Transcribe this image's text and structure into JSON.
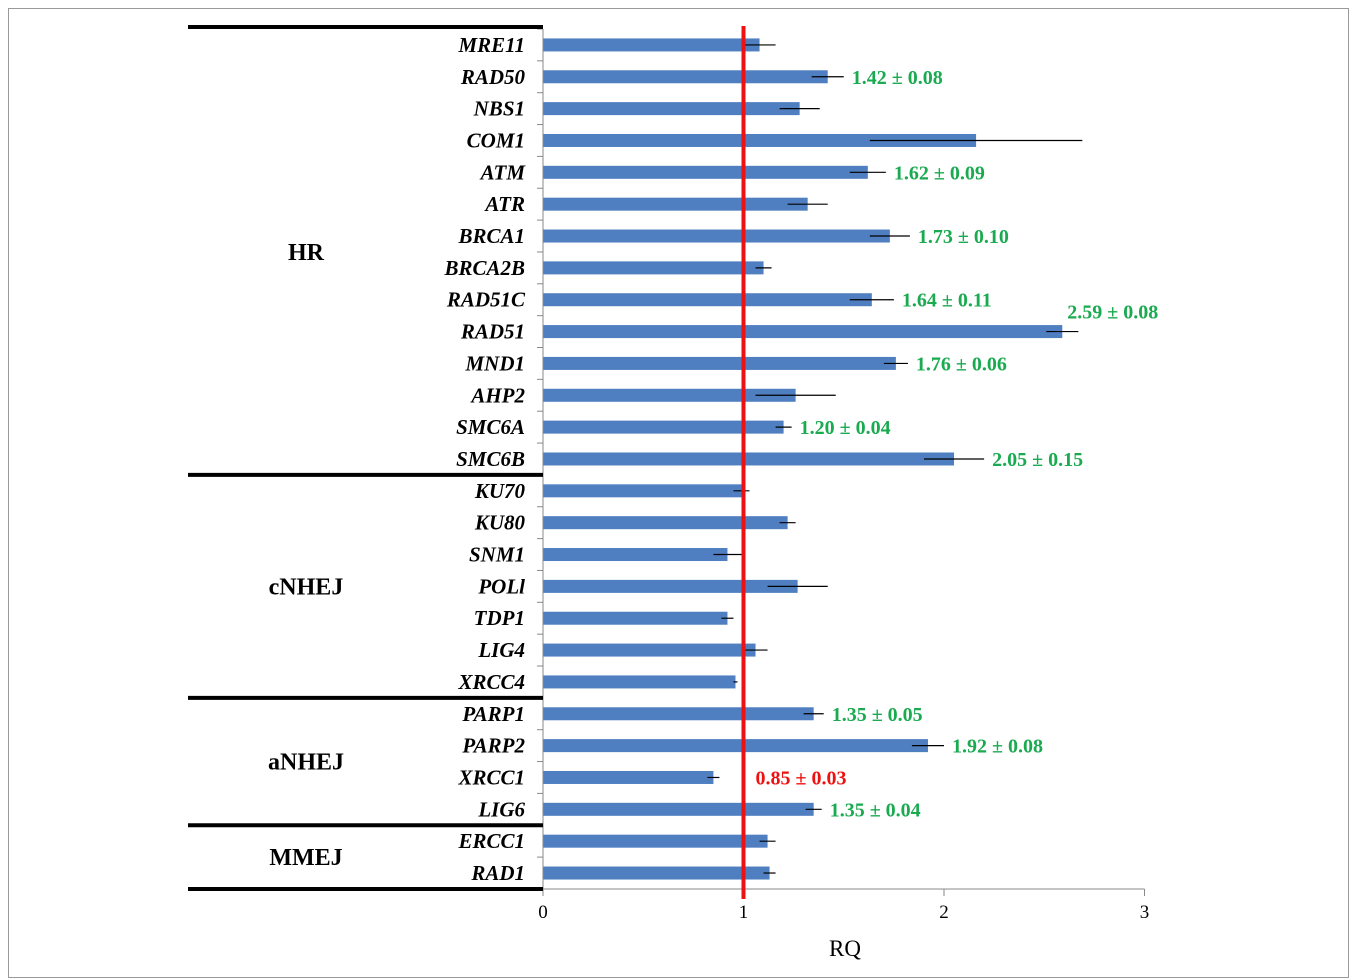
{
  "chart_data": {
    "type": "bar",
    "orientation": "horizontal",
    "xlabel": "RQ",
    "xlim": [
      0,
      3
    ],
    "xticks": [
      "0",
      "1",
      "2",
      "3"
    ],
    "reference_line": {
      "value": 1,
      "color": "#ee1111"
    },
    "bar_color": "#4f7fc1",
    "positive_color": "#1aaa50",
    "negative_color": "#ee1111",
    "groups": [
      {
        "name": "HR",
        "start": 0,
        "end": 13
      },
      {
        "name": "cNHEJ",
        "start": 14,
        "end": 20
      },
      {
        "name": "aNHEJ",
        "start": 21,
        "end": 24
      },
      {
        "name": "MMEJ",
        "start": 25,
        "end": 26
      }
    ],
    "categories": [
      "MRE11",
      "RAD50",
      "NBS1",
      "COM1",
      "ATM",
      "ATR",
      "BRCA1",
      "BRCA2B",
      "RAD51C",
      "RAD51",
      "MND1",
      "AHP2",
      "SMC6A",
      "SMC6B",
      "KU70",
      "KU80",
      "SNM1",
      "POLl",
      "TDP1",
      "LIG4",
      "XRCC4",
      "PARP1",
      "PARP2",
      "XRCC1",
      "LIG6",
      "ERCC1",
      "RAD1"
    ],
    "values": [
      1.08,
      1.42,
      1.28,
      2.16,
      1.62,
      1.32,
      1.73,
      1.1,
      1.64,
      2.59,
      1.76,
      1.26,
      1.2,
      2.05,
      0.99,
      1.22,
      0.92,
      1.27,
      0.92,
      1.06,
      0.96,
      1.35,
      1.92,
      0.85,
      1.35,
      1.12,
      1.13
    ],
    "errors": [
      0.08,
      0.08,
      0.1,
      0.53,
      0.09,
      0.1,
      0.1,
      0.04,
      0.11,
      0.08,
      0.06,
      0.2,
      0.04,
      0.15,
      0.04,
      0.04,
      0.07,
      0.15,
      0.03,
      0.06,
      0.01,
      0.05,
      0.08,
      0.03,
      0.04,
      0.04,
      0.03
    ],
    "annotations": [
      {
        "index": 1,
        "text": "1.42 ± 0.08",
        "color": "#1aaa50"
      },
      {
        "index": 4,
        "text": "1.62 ± 0.09",
        "color": "#1aaa50"
      },
      {
        "index": 6,
        "text": "1.73 ± 0.10",
        "color": "#1aaa50"
      },
      {
        "index": 8,
        "text": "1.64 ± 0.11",
        "color": "#1aaa50"
      },
      {
        "index": 9,
        "text": "2.59 ± 0.08",
        "color": "#1aaa50"
      },
      {
        "index": 10,
        "text": "1.76 ± 0.06",
        "color": "#1aaa50"
      },
      {
        "index": 12,
        "text": "1.20 ± 0.04",
        "color": "#1aaa50"
      },
      {
        "index": 13,
        "text": "2.05 ± 0.15",
        "color": "#1aaa50"
      },
      {
        "index": 21,
        "text": "1.35 ± 0.05",
        "color": "#1aaa50"
      },
      {
        "index": 22,
        "text": "1.92 ± 0.08",
        "color": "#1aaa50"
      },
      {
        "index": 23,
        "text": "0.85 ± 0.03",
        "color": "#ee1111"
      },
      {
        "index": 24,
        "text": "1.35 ± 0.04",
        "color": "#1aaa50"
      }
    ]
  }
}
